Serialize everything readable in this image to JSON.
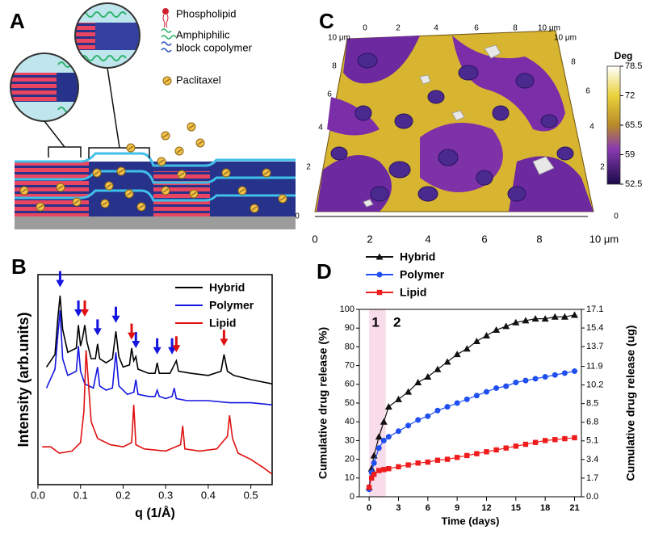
{
  "panel_a": {
    "label": "A",
    "legend": {
      "phospholipid": "Phospholipid",
      "copolymer": [
        "Amphiphilic",
        "block copolymer"
      ],
      "drug": "Paclitaxel"
    }
  },
  "panel_c": {
    "label": "C",
    "colorbar": {
      "title": "Deg",
      "range": [
        52.5,
        78.5
      ],
      "ticks": [
        78.5,
        72,
        65.5,
        59,
        52.5
      ]
    },
    "bottom_ticks": [
      "0",
      "2",
      "4",
      "6",
      "8",
      "10 μm"
    ],
    "left_ticks": [
      "0",
      "2",
      "4",
      "6",
      "8",
      "10 μm"
    ],
    "right_ticks": [
      "0",
      "2",
      "4",
      "6",
      "8",
      "10 μm"
    ],
    "top_ticks": [
      "0",
      "2",
      "4",
      "6",
      "8",
      "10 μm"
    ]
  },
  "chart_data": [
    {
      "type": "line",
      "panel": "B",
      "x_label": "q (1/Å)",
      "y_label": "Intensity (arb.units)",
      "xlim": [
        0,
        0.55
      ],
      "xticks": [
        {
          "value": 0,
          "label": "0.0"
        },
        0.1,
        0.2,
        0.3,
        0.4,
        0.5
      ],
      "ylim": [
        0,
        10
      ],
      "legend": "upper right",
      "series": [
        {
          "name": "Hybrid",
          "color": "#000000",
          "x": [
            0.02,
            0.04,
            0.047,
            0.052,
            0.058,
            0.07,
            0.09,
            0.095,
            0.1,
            0.105,
            0.11,
            0.115,
            0.125,
            0.135,
            0.14,
            0.145,
            0.16,
            0.175,
            0.183,
            0.19,
            0.2,
            0.215,
            0.22,
            0.225,
            0.23,
            0.235,
            0.26,
            0.275,
            0.28,
            0.285,
            0.31,
            0.32,
            0.325,
            0.33,
            0.36,
            0.4,
            0.43,
            0.437,
            0.445,
            0.46,
            0.5,
            0.55
          ],
          "values": [
            5.6,
            6.2,
            8.0,
            9.0,
            7.4,
            6.3,
            6.5,
            7.6,
            6.6,
            7.0,
            7.6,
            6.8,
            6.0,
            6.0,
            6.7,
            6.0,
            5.8,
            6.0,
            7.3,
            6.1,
            5.6,
            5.7,
            6.5,
            5.9,
            6.1,
            5.5,
            5.3,
            5.3,
            5.8,
            5.3,
            5.3,
            5.7,
            5.9,
            5.4,
            5.3,
            5.2,
            5.4,
            6.2,
            5.4,
            5.2,
            5.0,
            4.8
          ]
        },
        {
          "name": "Polymer",
          "color": "#1515e0",
          "x": [
            0.02,
            0.04,
            0.047,
            0.052,
            0.058,
            0.07,
            0.09,
            0.095,
            0.1,
            0.11,
            0.13,
            0.14,
            0.145,
            0.16,
            0.175,
            0.183,
            0.19,
            0.21,
            0.225,
            0.23,
            0.235,
            0.26,
            0.275,
            0.28,
            0.285,
            0.3,
            0.315,
            0.32,
            0.325,
            0.35,
            0.4,
            0.45,
            0.5,
            0.55
          ],
          "values": [
            4.6,
            5.5,
            7.2,
            8.3,
            6.0,
            5.2,
            5.4,
            6.6,
            5.4,
            4.8,
            4.6,
            5.6,
            4.7,
            4.5,
            4.6,
            6.3,
            4.7,
            4.3,
            4.4,
            5.0,
            4.3,
            4.2,
            4.2,
            4.5,
            4.2,
            4.1,
            4.2,
            4.6,
            4.1,
            4.0,
            4.0,
            3.9,
            3.9,
            3.8
          ]
        },
        {
          "name": "Lipid",
          "color": "#e01010",
          "x": [
            0.01,
            0.03,
            0.05,
            0.08,
            0.1,
            0.108,
            0.113,
            0.118,
            0.125,
            0.14,
            0.17,
            0.2,
            0.22,
            0.225,
            0.23,
            0.25,
            0.3,
            0.335,
            0.34,
            0.345,
            0.38,
            0.42,
            0.445,
            0.45,
            0.457,
            0.47,
            0.5,
            0.53,
            0.55
          ],
          "values": [
            1.8,
            1.8,
            1.5,
            1.6,
            2.0,
            3.5,
            6.4,
            5.0,
            3.0,
            2.2,
            1.9,
            1.8,
            2.0,
            3.8,
            1.9,
            1.7,
            1.6,
            1.9,
            2.8,
            1.7,
            1.6,
            1.7,
            2.3,
            3.3,
            2.2,
            1.5,
            1.2,
            0.8,
            0.5
          ]
        }
      ],
      "arrows": [
        {
          "x": 0.052,
          "y": 9.4,
          "color": "#1515e0"
        },
        {
          "x": 0.095,
          "y": 8.0,
          "color": "#1515e0"
        },
        {
          "x": 0.14,
          "y": 7.1,
          "color": "#1515e0"
        },
        {
          "x": 0.183,
          "y": 7.7,
          "color": "#1515e0"
        },
        {
          "x": 0.23,
          "y": 6.5,
          "color": "#1515e0"
        },
        {
          "x": 0.28,
          "y": 6.2,
          "color": "#1515e0"
        },
        {
          "x": 0.315,
          "y": 6.2,
          "color": "#1515e0"
        },
        {
          "x": 0.11,
          "y": 8.0,
          "color": "#e01010"
        },
        {
          "x": 0.22,
          "y": 6.9,
          "color": "#e01010"
        },
        {
          "x": 0.325,
          "y": 6.3,
          "color": "#e01010"
        },
        {
          "x": 0.437,
          "y": 6.6,
          "color": "#e01010"
        }
      ]
    },
    {
      "type": "line",
      "panel": "D",
      "x_label": "Time (days)",
      "y_label": "Cumulative drug release (%)",
      "y2_label": "Cumulative drug release (ug)",
      "xlim": [
        -1,
        21.7
      ],
      "xticks": [
        0,
        3,
        6,
        9,
        12,
        15,
        18,
        21
      ],
      "ylim": [
        0,
        100
      ],
      "yticks": [
        0,
        10,
        20,
        30,
        40,
        50,
        60,
        70,
        80,
        90,
        100
      ],
      "y2lim": [
        0,
        17.1
      ],
      "y2ticks": [
        {
          "value": 0,
          "label": "0.0"
        },
        1.7,
        3.4,
        5.1,
        6.8,
        8.5,
        10.2,
        11.9,
        13.7,
        15.4,
        17.1
      ],
      "legend": "top left",
      "shaded_xlim": [
        0,
        1.7
      ],
      "phase_labels": [
        "1",
        "2"
      ],
      "x": [
        0,
        0.25,
        0.5,
        1,
        1.5,
        2,
        3,
        4,
        5,
        6,
        7,
        8,
        9,
        10,
        11,
        12,
        13,
        14,
        15,
        16,
        17,
        18,
        19,
        20,
        21
      ],
      "series": [
        {
          "name": "Hybrid",
          "color": "#111111",
          "marker": "triangle",
          "values": [
            5,
            15,
            22,
            32,
            40,
            48,
            52,
            56,
            61,
            64,
            68,
            72,
            76,
            79,
            83,
            86,
            89,
            91,
            93,
            94,
            95,
            95,
            96,
            96,
            97
          ]
        },
        {
          "name": "Polymer",
          "color": "#1f4ff0",
          "marker": "circle",
          "values": [
            4,
            13,
            18,
            26,
            30,
            32,
            35,
            38,
            41,
            43,
            46,
            48,
            50,
            52,
            54,
            56,
            58,
            59,
            61,
            62,
            63,
            64,
            65,
            66,
            67
          ]
        },
        {
          "name": "Lipid",
          "color": "#ee1c1c",
          "marker": "square",
          "values": [
            5,
            10,
            12,
            14,
            14.5,
            15,
            16,
            17,
            18,
            18.5,
            19.5,
            20,
            21,
            22,
            23,
            24,
            25,
            26,
            27,
            28,
            29,
            30,
            30.5,
            31,
            31.5
          ]
        }
      ]
    }
  ]
}
